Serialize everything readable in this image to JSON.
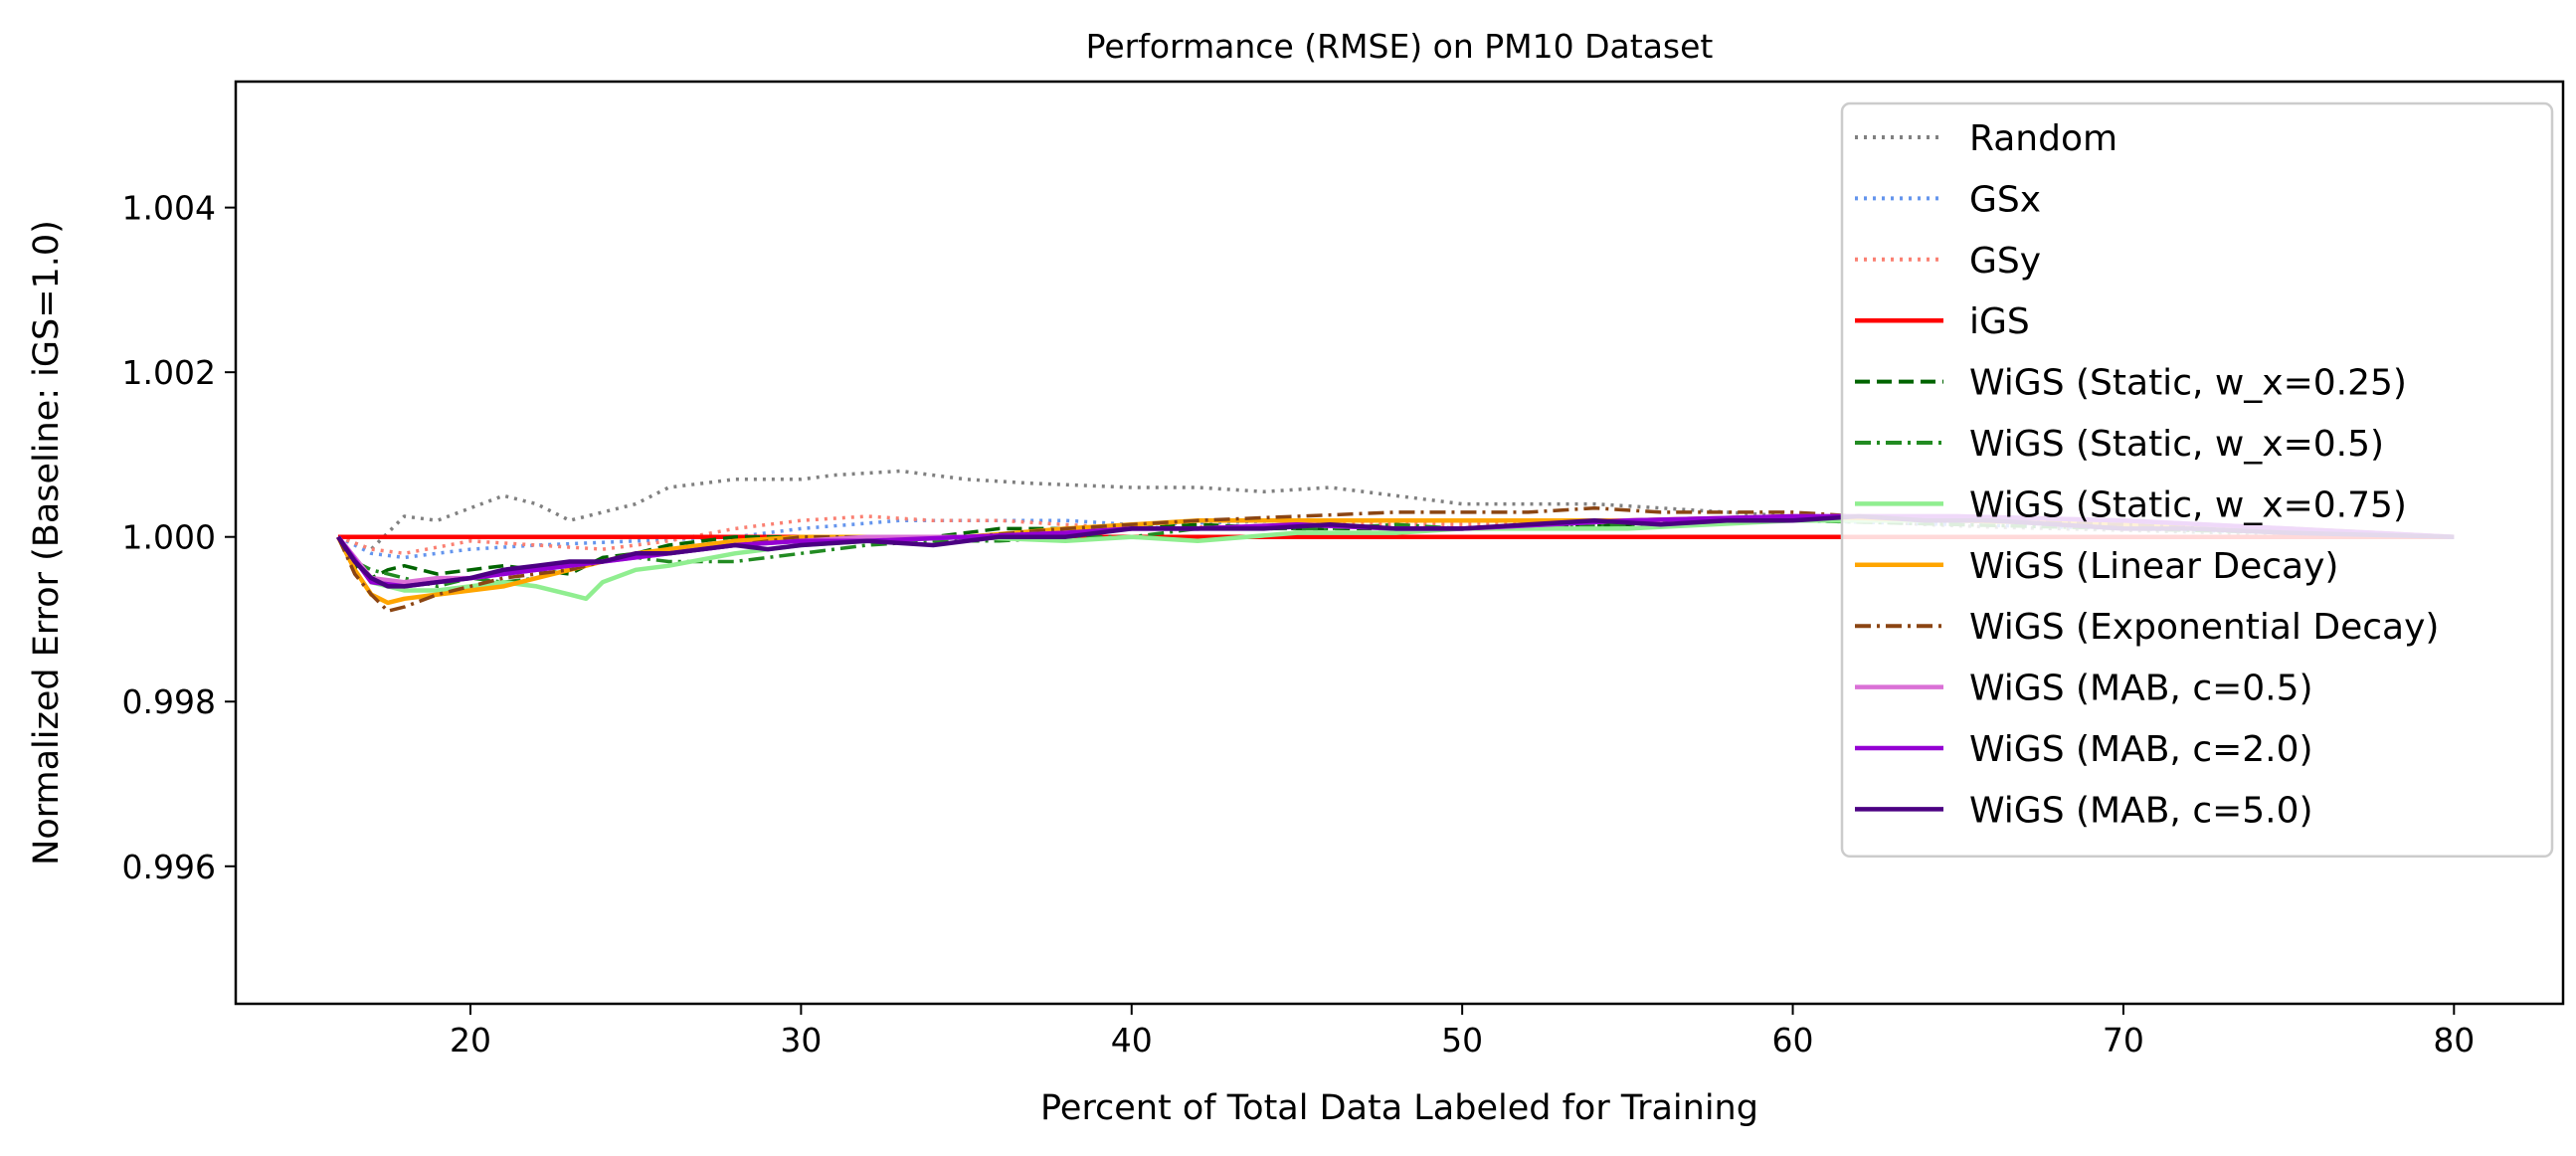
{
  "chart_data": {
    "type": "line",
    "title": "Performance (RMSE) on PM10 Dataset",
    "xlabel": "Percent of Total Data Labeled for Training",
    "ylabel": "Normalized Error (Baseline: iGS=1.0)",
    "xlim": [
      12.9,
      83.3
    ],
    "ylim": [
      0.99433,
      1.00553
    ],
    "x_ticks": [
      20,
      30,
      40,
      50,
      60,
      70,
      80
    ],
    "x_tick_labels": [
      "20",
      "30",
      "40",
      "50",
      "60",
      "70",
      "80"
    ],
    "y_ticks": [
      0.996,
      0.998,
      1.0,
      1.002,
      1.004
    ],
    "y_tick_labels": [
      "0.996",
      "0.998",
      "1.000",
      "1.002",
      "1.004"
    ],
    "grid": false,
    "legend_position": "top-right",
    "series": [
      {
        "name": "Random",
        "color": "#808080",
        "style": "dotted",
        "x": [
          16,
          17,
          18,
          19,
          20,
          21,
          22,
          23,
          24,
          25,
          26,
          28,
          30,
          31,
          33,
          35,
          37,
          40,
          42,
          44,
          46,
          48,
          50,
          52,
          54,
          56,
          58,
          60,
          62,
          64,
          66,
          68,
          70,
          72,
          74,
          76,
          78,
          80
        ],
        "y": [
          1.0,
          0.99985,
          1.00025,
          1.0002,
          1.00035,
          1.0005,
          1.0004,
          1.0002,
          1.0003,
          1.0004,
          1.0006,
          1.0007,
          1.0007,
          1.00075,
          1.0008,
          1.0007,
          1.00065,
          1.0006,
          1.0006,
          1.00055,
          1.0006,
          1.0005,
          1.0004,
          1.0004,
          1.0004,
          1.00035,
          1.0003,
          1.00025,
          1.0002,
          1.00015,
          1.00012,
          1.0001,
          1.00008,
          1.00006,
          1.00004,
          1.00003,
          1.00001,
          1.0
        ]
      },
      {
        "name": "GSx",
        "color": "#6495ED",
        "style": "dotted",
        "x": [
          16,
          17,
          18,
          20,
          22,
          25,
          28,
          30,
          33,
          35,
          38,
          40,
          45,
          50,
          55,
          60,
          65,
          70,
          75,
          80
        ],
        "y": [
          1.0,
          0.9998,
          0.99975,
          0.99985,
          0.9999,
          0.99995,
          1.0,
          1.0001,
          1.0002,
          1.0002,
          1.0002,
          1.00015,
          1.0002,
          1.0002,
          1.0002,
          1.0002,
          1.00015,
          1.0001,
          1.00005,
          1.0
        ]
      },
      {
        "name": "GSy",
        "color": "#FA8072",
        "style": "dotted",
        "x": [
          16,
          17,
          18,
          20,
          22,
          24,
          26,
          28,
          30,
          32,
          34,
          36,
          38,
          40,
          45,
          50,
          55,
          60,
          65,
          70,
          75,
          80
        ],
        "y": [
          1.0,
          0.99985,
          0.9998,
          0.99995,
          0.9999,
          0.99985,
          0.99995,
          1.0001,
          1.0002,
          1.00025,
          1.0002,
          1.0002,
          1.00015,
          1.0001,
          1.00015,
          1.00015,
          1.0002,
          1.0002,
          1.0002,
          1.00015,
          1.0001,
          1.0
        ]
      },
      {
        "name": "iGS",
        "color": "#FF0000",
        "style": "solid",
        "x": [
          16,
          80
        ],
        "y": [
          1.0,
          1.0
        ]
      },
      {
        "name": "WiGS (Static, w_x=0.25)",
        "color": "#006400",
        "style": "dashed",
        "x": [
          16,
          16.5,
          17,
          17.5,
          18,
          19,
          20,
          21,
          22,
          23,
          24,
          25,
          26,
          28,
          30,
          32,
          34,
          36,
          38,
          40,
          42,
          45,
          48,
          50,
          55,
          60,
          62,
          65,
          70,
          75,
          80
        ],
        "y": [
          1.0,
          0.99965,
          0.9995,
          0.9996,
          0.99965,
          0.99955,
          0.9996,
          0.99965,
          0.9996,
          0.99955,
          0.99975,
          0.9998,
          0.9999,
          1.0,
          1.0,
          1.0,
          1.0,
          1.0001,
          1.0001,
          1.0001,
          1.00015,
          1.0001,
          1.0001,
          1.0001,
          1.00015,
          1.0002,
          1.0002,
          1.0002,
          1.00015,
          1.0001,
          1.0
        ]
      },
      {
        "name": "WiGS (Static, w_x=0.5)",
        "color": "#228B22",
        "style": "dashdot",
        "x": [
          16,
          16.5,
          17,
          18,
          19,
          20,
          21,
          22,
          23,
          24,
          25,
          26,
          28,
          30,
          32,
          34,
          36,
          38,
          40,
          42,
          44,
          46,
          48,
          50,
          55,
          60,
          65,
          70,
          75,
          80
        ],
        "y": [
          1.0,
          0.9997,
          0.9996,
          0.9995,
          0.9994,
          0.9995,
          0.99945,
          0.9995,
          0.9996,
          0.9997,
          0.99975,
          0.9997,
          0.9997,
          0.9998,
          0.9999,
          0.99995,
          0.99995,
          1.0,
          1.0,
          1.0001,
          1.0001,
          1.0001,
          1.00015,
          1.0001,
          1.00015,
          1.0002,
          1.00015,
          1.0001,
          1.00005,
          1.0
        ]
      },
      {
        "name": "WiGS (Static, w_x=0.75)",
        "color": "#90EE90",
        "style": "solid",
        "x": [
          16,
          17,
          18,
          19,
          20,
          21,
          22,
          23,
          23.5,
          24,
          25,
          26,
          28,
          30,
          32,
          35,
          38,
          40,
          42,
          45,
          48,
          50,
          55,
          60,
          62,
          65,
          70,
          75,
          80
        ],
        "y": [
          1.0,
          0.99945,
          0.99935,
          0.99935,
          0.9994,
          0.99945,
          0.9994,
          0.9993,
          0.99925,
          0.99945,
          0.9996,
          0.99965,
          0.9998,
          0.9999,
          0.99995,
          1.0,
          0.99995,
          1.0,
          0.99995,
          1.00005,
          1.00005,
          1.0001,
          1.0001,
          1.0002,
          1.0002,
          1.0002,
          1.00015,
          1.0001,
          1.0
        ]
      },
      {
        "name": "WiGS (Linear Decay)",
        "color": "#FFA500",
        "style": "solid",
        "x": [
          16,
          16.5,
          17,
          17.5,
          18,
          19,
          20,
          21,
          22,
          23,
          24,
          25,
          26,
          28,
          30,
          32,
          35,
          38,
          40,
          42,
          45,
          48,
          50,
          55,
          60,
          65,
          70,
          75,
          80
        ],
        "y": [
          1.0,
          0.9996,
          0.9993,
          0.9992,
          0.99925,
          0.9993,
          0.99935,
          0.9994,
          0.9995,
          0.9996,
          0.9997,
          0.9998,
          0.99985,
          0.99995,
          1.0,
          1.0,
          1.0,
          1.0001,
          1.00015,
          1.0002,
          1.0002,
          1.0002,
          1.0002,
          1.0002,
          1.00025,
          1.0002,
          1.00015,
          1.0001,
          1.0
        ]
      },
      {
        "name": "WiGS (Exponential Decay)",
        "color": "#8B4513",
        "style": "dashdot",
        "x": [
          16,
          16.5,
          17,
          17.5,
          18,
          19,
          20,
          21,
          22,
          23,
          24,
          25,
          26,
          28,
          30,
          32,
          35,
          38,
          40,
          42,
          45,
          48,
          50,
          52,
          54,
          56,
          58,
          60,
          62,
          65,
          70,
          75,
          80
        ],
        "y": [
          1.0,
          0.99955,
          0.9993,
          0.9991,
          0.99915,
          0.9993,
          0.9994,
          0.9995,
          0.99955,
          0.9996,
          0.9997,
          0.99975,
          0.9998,
          0.9999,
          1.0,
          1.0,
          1.0,
          1.0001,
          1.00015,
          1.0002,
          1.00025,
          1.0003,
          1.0003,
          1.0003,
          1.00035,
          1.0003,
          1.0003,
          1.0003,
          1.00025,
          1.0002,
          1.00015,
          1.0001,
          1.0
        ]
      },
      {
        "name": "WiGS (MAB, c=0.5)",
        "color": "#DA70D6",
        "style": "solid",
        "x": [
          16,
          17,
          18,
          19,
          20,
          22,
          24,
          26,
          28,
          30,
          32,
          35,
          38,
          40,
          42,
          45,
          48,
          50,
          55,
          60,
          65,
          70,
          75,
          80
        ],
        "y": [
          1.0,
          0.9995,
          0.99945,
          0.9995,
          0.9995,
          0.9996,
          0.9997,
          0.9998,
          0.9999,
          0.99995,
          1.0,
          1.0,
          1.00005,
          1.0001,
          1.0001,
          1.00015,
          1.0001,
          1.0001,
          1.0002,
          1.00025,
          1.00025,
          1.0002,
          1.0001,
          1.0
        ]
      },
      {
        "name": "WiGS (MAB, c=2.0)",
        "color": "#9400D3",
        "style": "solid",
        "x": [
          16,
          17,
          18,
          19,
          20,
          22,
          24,
          26,
          28,
          30,
          32,
          35,
          38,
          40,
          42,
          45,
          48,
          50,
          55,
          60,
          65,
          70,
          75,
          80
        ],
        "y": [
          1.0,
          0.99945,
          0.9994,
          0.99945,
          0.9995,
          0.9996,
          0.9997,
          0.9998,
          0.9999,
          0.99995,
          0.99995,
          1.0,
          1.00005,
          1.0001,
          1.0001,
          1.00015,
          1.0001,
          1.0001,
          1.0002,
          1.00025,
          1.00025,
          1.0002,
          1.0001,
          1.0
        ]
      },
      {
        "name": "WiGS (MAB, c=5.0)",
        "color": "#4B0082",
        "style": "solid",
        "x": [
          16,
          16.5,
          17,
          17.5,
          18,
          19,
          20,
          21,
          22,
          23,
          24,
          25,
          26,
          27,
          28,
          29,
          30,
          32,
          34,
          36,
          38,
          40,
          42,
          44,
          46,
          48,
          50,
          52,
          54,
          56,
          58,
          60,
          62,
          64,
          66,
          68,
          70,
          72,
          75,
          78,
          80
        ],
        "y": [
          1.0,
          0.9997,
          0.9995,
          0.9994,
          0.9994,
          0.99945,
          0.9995,
          0.9996,
          0.99965,
          0.9997,
          0.9997,
          0.9998,
          0.9998,
          0.99985,
          0.9999,
          0.99985,
          0.9999,
          0.99995,
          0.9999,
          1.0,
          1.0,
          1.0001,
          1.0001,
          1.0001,
          1.00015,
          1.0001,
          1.0001,
          1.00015,
          1.0002,
          1.00015,
          1.0002,
          1.0002,
          1.00025,
          1.0002,
          1.0002,
          1.00015,
          1.0001,
          1.0001,
          1.00005,
          1.00002,
          1.0
        ]
      }
    ]
  }
}
